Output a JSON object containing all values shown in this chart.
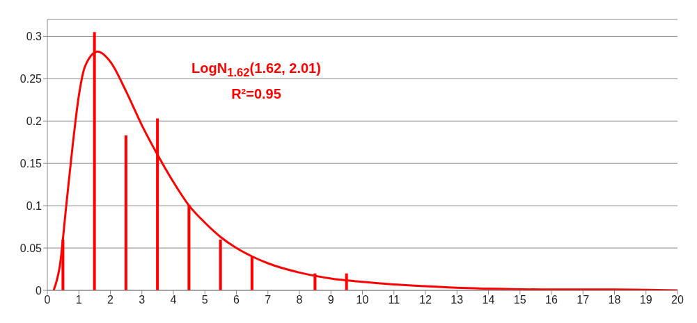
{
  "chart_data": {
    "type": "bar",
    "x": [
      0.5,
      1.5,
      2.5,
      3.5,
      4.5,
      5.5,
      6.5,
      8.5,
      9.5
    ],
    "series": [
      {
        "color": "#ff0000",
        "values": [
          0.06,
          0.305,
          0.183,
          0.203,
          0.101,
          0.06,
          0.04,
          0.02,
          0.02
        ]
      },
      {
        "type": "line",
        "color": "#ff0000",
        "x": [
          0.2,
          0.4,
          0.6,
          0.8,
          1.0,
          1.2,
          1.6,
          2.0,
          2.5,
          3.0,
          3.5,
          4.0,
          4.5,
          5.0,
          5.5,
          6.0,
          6.5,
          7.0,
          8.0,
          9.0,
          10,
          11,
          12,
          13,
          14,
          16,
          18,
          20
        ],
        "values": [
          0,
          0.03,
          0.1,
          0.17,
          0.23,
          0.265,
          0.282,
          0.27,
          0.235,
          0.195,
          0.16,
          0.128,
          0.1,
          0.08,
          0.063,
          0.05,
          0.04,
          0.032,
          0.021,
          0.014,
          0.01,
          0.007,
          0.005,
          0.003,
          0.002,
          0.001,
          0.001,
          0
        ]
      }
    ],
    "xlim": [
      0,
      20
    ],
    "xticks": [
      0,
      1,
      2,
      3,
      4,
      5,
      6,
      7,
      8,
      9,
      10,
      11,
      12,
      13,
      14,
      15,
      16,
      17,
      18,
      19,
      20
    ],
    "ylim": [
      0,
      0.32
    ],
    "yticks": [
      0,
      0.05,
      0.1,
      0.15,
      0.2,
      0.25,
      0.3
    ],
    "grid": "y",
    "legend": false,
    "marker": "none",
    "line_style": "solid",
    "annotations": [
      "LogN$_{1.62}$(1.62, 2.01)",
      "R²=0.95"
    ]
  }
}
